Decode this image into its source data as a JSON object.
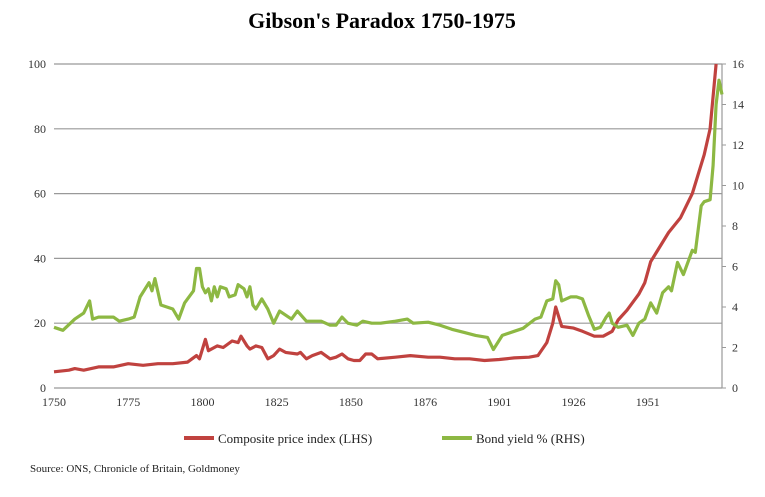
{
  "chart_data": {
    "type": "line",
    "title": "Gibson's Paradox 1750-1975",
    "source": "Source: ONS, Chronicle of Britain, Goldmoney",
    "x_tick_labels": [
      "1750",
      "1775",
      "1800",
      "1825",
      "1850",
      "1876",
      "1901",
      "1926",
      "1951"
    ],
    "xlim": [
      1750,
      1975
    ],
    "y_left": {
      "lim": [
        0,
        100
      ],
      "ticks": [
        "0",
        "20",
        "40",
        "60",
        "80",
        "100"
      ]
    },
    "y_right": {
      "lim": [
        0,
        16
      ],
      "ticks": [
        "0",
        "2",
        "4",
        "6",
        "8",
        "10",
        "12",
        "14",
        "16"
      ]
    },
    "grid": true,
    "legend_position": "bottom",
    "series": [
      {
        "name": "Composite price index (LHS)",
        "axis": "left",
        "color": "#c0423f",
        "x": [
          1750,
          1755,
          1757,
          1760,
          1765,
          1770,
          1775,
          1780,
          1785,
          1790,
          1795,
          1798,
          1799,
          1801,
          1802,
          1805,
          1807,
          1810,
          1812,
          1813,
          1815,
          1816,
          1818,
          1820,
          1822,
          1824,
          1826,
          1828,
          1832,
          1833,
          1835,
          1837,
          1840,
          1843,
          1845,
          1847,
          1849,
          1851,
          1853,
          1855,
          1857,
          1859,
          1865,
          1870,
          1876,
          1880,
          1885,
          1890,
          1895,
          1900,
          1905,
          1910,
          1913,
          1916,
          1918,
          1919,
          1921,
          1925,
          1928,
          1932,
          1935,
          1938,
          1940,
          1943,
          1947,
          1949,
          1951,
          1953,
          1957,
          1961,
          1965,
          1969,
          1971,
          1972,
          1973
        ],
        "values": [
          5,
          5.5,
          6,
          5.5,
          6.5,
          6.5,
          7.5,
          7,
          7.5,
          7.5,
          8,
          10,
          9,
          15,
          11.5,
          13,
          12.5,
          14.5,
          14,
          16,
          13,
          12,
          13,
          12.5,
          9,
          10,
          12,
          11,
          10.5,
          11,
          9,
          10,
          11,
          9,
          9.5,
          10.5,
          9,
          8.5,
          8.5,
          10.5,
          10.5,
          9,
          9.5,
          10,
          9.5,
          9.5,
          9,
          9,
          8.5,
          8.8,
          9.3,
          9.5,
          10,
          14,
          20,
          25,
          19,
          18.5,
          17.5,
          16,
          16,
          17.5,
          21,
          24,
          29,
          32.5,
          39,
          42,
          48,
          52.5,
          60,
          72,
          80,
          90,
          100
        ]
      },
      {
        "name": "Bond yield % (RHS)",
        "axis": "right",
        "color": "#8db843",
        "x": [
          1750,
          1753,
          1757,
          1760,
          1762,
          1763,
          1765,
          1770,
          1772,
          1775,
          1777,
          1779,
          1782,
          1783,
          1784,
          1786,
          1790,
          1792,
          1794,
          1797,
          1798,
          1799,
          1800,
          1801,
          1802,
          1803,
          1804,
          1805,
          1806,
          1808,
          1809,
          1811,
          1812,
          1814,
          1815,
          1816,
          1817,
          1818,
          1820,
          1822,
          1824,
          1826,
          1829,
          1830,
          1832,
          1835,
          1840,
          1843,
          1845,
          1847,
          1849,
          1852,
          1854,
          1857,
          1860,
          1865,
          1869,
          1871,
          1876,
          1880,
          1884,
          1888,
          1892,
          1896,
          1898,
          1901,
          1905,
          1908,
          1912,
          1914,
          1916,
          1918,
          1919,
          1920,
          1921,
          1924,
          1926,
          1928,
          1930,
          1932,
          1934,
          1936,
          1937,
          1938,
          1940,
          1943,
          1945,
          1947,
          1949,
          1951,
          1953,
          1955,
          1957,
          1958,
          1960,
          1962,
          1965,
          1966,
          1968,
          1969,
          1971,
          1972,
          1973,
          1974,
          1975
        ],
        "values": [
          3.0,
          2.85,
          3.4,
          3.7,
          4.3,
          3.4,
          3.5,
          3.5,
          3.3,
          3.4,
          3.5,
          4.5,
          5.2,
          4.8,
          5.4,
          4.1,
          3.9,
          3.4,
          4.2,
          4.8,
          5.9,
          5.9,
          5.0,
          4.7,
          4.9,
          4.3,
          5.0,
          4.5,
          5.0,
          4.9,
          4.5,
          4.6,
          5.1,
          4.9,
          4.5,
          5.0,
          4.1,
          3.9,
          4.4,
          3.9,
          3.2,
          3.8,
          3.5,
          3.4,
          3.8,
          3.3,
          3.3,
          3.1,
          3.1,
          3.5,
          3.2,
          3.1,
          3.3,
          3.2,
          3.2,
          3.3,
          3.4,
          3.2,
          3.25,
          3.1,
          2.9,
          2.75,
          2.6,
          2.5,
          1.9,
          2.6,
          2.8,
          2.95,
          3.4,
          3.5,
          4.3,
          4.4,
          5.3,
          5.1,
          4.3,
          4.5,
          4.5,
          4.4,
          3.6,
          2.9,
          3.0,
          3.5,
          3.7,
          3.2,
          3.0,
          3.1,
          2.6,
          3.2,
          3.4,
          4.2,
          3.7,
          4.7,
          5.0,
          4.8,
          6.2,
          5.6,
          6.8,
          6.7,
          9.0,
          9.2,
          9.3,
          11,
          14.0,
          15.2,
          14.5
        ]
      }
    ]
  }
}
